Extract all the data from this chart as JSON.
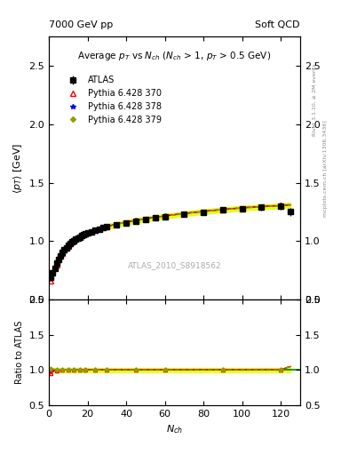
{
  "title_left": "7000 GeV pp",
  "title_right": "Soft QCD",
  "plot_title": "Average $p_{T}$ vs $N_{ch}$ ($N_{ch}$ > 1, $p_{T}$ > 0.5 GeV)",
  "xlabel": "$N_{ch}$",
  "ylabel_main": "$\\langle p_{T} \\rangle$ [GeV]",
  "ylabel_ratio": "Ratio to ATLAS",
  "right_label_top": "Rivet 3.1.10, ≥ 2M events",
  "right_label_bottom": "mcplots.cern.ch [arXiv:1306.3436]",
  "watermark": "ATLAS_2010_S8918562",
  "xlim": [
    0,
    130
  ],
  "ylim_main": [
    0.5,
    2.75
  ],
  "ylim_ratio": [
    0.5,
    2.0
  ],
  "yticks_main": [
    0.5,
    1.0,
    1.5,
    2.0,
    2.5
  ],
  "yticks_ratio": [
    0.5,
    1.0,
    1.5,
    2.0
  ],
  "atlas_x": [
    1,
    2,
    3,
    4,
    5,
    6,
    7,
    8,
    9,
    10,
    11,
    12,
    13,
    14,
    15,
    16,
    17,
    18,
    19,
    20,
    22,
    24,
    26,
    28,
    30,
    35,
    40,
    45,
    50,
    55,
    60,
    70,
    80,
    90,
    100,
    110,
    120,
    125
  ],
  "atlas_y": [
    0.693,
    0.73,
    0.771,
    0.81,
    0.845,
    0.876,
    0.901,
    0.923,
    0.943,
    0.961,
    0.977,
    0.992,
    1.005,
    1.016,
    1.027,
    1.036,
    1.045,
    1.053,
    1.061,
    1.068,
    1.081,
    1.093,
    1.103,
    1.113,
    1.122,
    1.141,
    1.157,
    1.172,
    1.186,
    1.198,
    1.21,
    1.23,
    1.249,
    1.265,
    1.278,
    1.288,
    1.296,
    1.25
  ],
  "atlas_yerr": [
    0.02,
    0.015,
    0.012,
    0.01,
    0.009,
    0.008,
    0.007,
    0.007,
    0.006,
    0.006,
    0.006,
    0.006,
    0.006,
    0.006,
    0.006,
    0.006,
    0.006,
    0.006,
    0.006,
    0.006,
    0.006,
    0.006,
    0.006,
    0.006,
    0.006,
    0.007,
    0.008,
    0.009,
    0.01,
    0.011,
    0.012,
    0.014,
    0.016,
    0.018,
    0.021,
    0.025,
    0.03,
    0.035
  ],
  "py370_x": [
    1,
    2,
    3,
    4,
    5,
    6,
    7,
    8,
    9,
    10,
    11,
    12,
    13,
    14,
    15,
    16,
    17,
    18,
    19,
    20,
    22,
    24,
    26,
    28,
    30,
    35,
    40,
    45,
    50,
    55,
    60,
    70,
    80,
    90,
    100,
    110,
    120,
    125
  ],
  "py370_y": [
    0.66,
    0.71,
    0.758,
    0.8,
    0.838,
    0.87,
    0.898,
    0.921,
    0.942,
    0.96,
    0.976,
    0.991,
    1.004,
    1.016,
    1.027,
    1.037,
    1.046,
    1.055,
    1.063,
    1.07,
    1.083,
    1.095,
    1.106,
    1.116,
    1.125,
    1.145,
    1.162,
    1.177,
    1.191,
    1.204,
    1.215,
    1.236,
    1.254,
    1.27,
    1.284,
    1.295,
    1.303,
    1.31
  ],
  "py378_x": [
    1,
    2,
    3,
    4,
    5,
    6,
    7,
    8,
    9,
    10,
    11,
    12,
    13,
    14,
    15,
    16,
    17,
    18,
    19,
    20,
    22,
    24,
    26,
    28,
    30,
    35,
    40,
    45,
    50,
    55,
    60,
    70,
    80,
    90,
    100,
    110,
    120,
    125
  ],
  "py378_y": [
    0.675,
    0.718,
    0.762,
    0.803,
    0.84,
    0.872,
    0.9,
    0.923,
    0.943,
    0.961,
    0.977,
    0.992,
    1.005,
    1.017,
    1.028,
    1.038,
    1.047,
    1.056,
    1.063,
    1.071,
    1.084,
    1.096,
    1.107,
    1.117,
    1.126,
    1.146,
    1.163,
    1.178,
    1.192,
    1.204,
    1.216,
    1.237,
    1.255,
    1.271,
    1.285,
    1.297,
    1.305,
    1.312
  ],
  "py379_x": [
    1,
    2,
    3,
    4,
    5,
    6,
    7,
    8,
    9,
    10,
    11,
    12,
    13,
    14,
    15,
    16,
    17,
    18,
    19,
    20,
    22,
    24,
    26,
    28,
    30,
    35,
    40,
    45,
    50,
    55,
    60,
    70,
    80,
    90,
    100,
    110,
    120,
    125
  ],
  "py379_y": [
    0.7,
    0.738,
    0.778,
    0.816,
    0.85,
    0.88,
    0.906,
    0.928,
    0.947,
    0.964,
    0.979,
    0.993,
    1.006,
    1.017,
    1.028,
    1.037,
    1.046,
    1.054,
    1.062,
    1.069,
    1.082,
    1.094,
    1.104,
    1.114,
    1.123,
    1.143,
    1.16,
    1.175,
    1.189,
    1.201,
    1.213,
    1.234,
    1.252,
    1.268,
    1.282,
    1.293,
    1.301,
    1.308
  ],
  "atlas_color": "#000000",
  "py370_color": "#ff0000",
  "py378_color": "#0000ff",
  "py379_color": "#999900",
  "py379_fill_color": "#ddff00",
  "bg_color": "#ffffff",
  "ratio_band_color": "#ddff00"
}
